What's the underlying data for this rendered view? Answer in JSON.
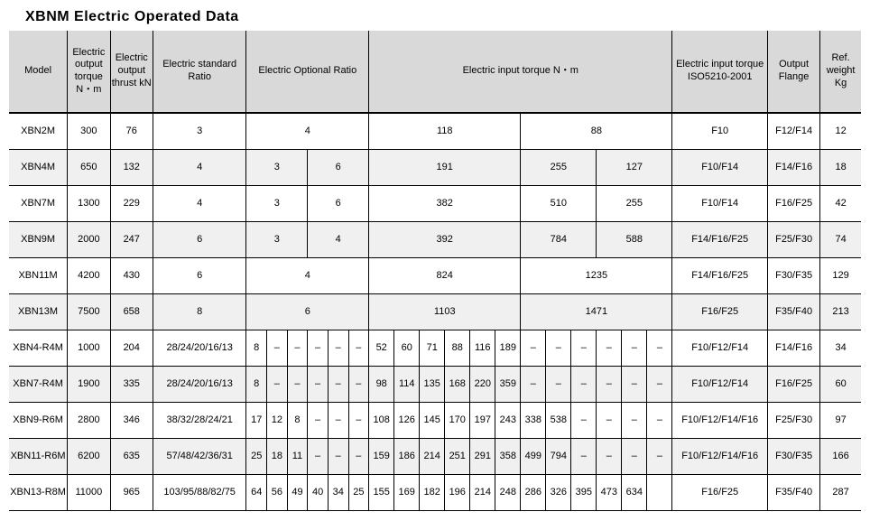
{
  "title": "XBNM Electric Operated Data",
  "headers": {
    "model": "Model",
    "out_torque": "Electric output torque N・m",
    "out_thrust": "Electric output thrust kN",
    "std_ratio": "Electric standard Ratio",
    "opt_ratio": "Electric Optional Ratio",
    "in_torque": "Electric input torque  N・m",
    "iso": "Electric input torque ISO5210-2001",
    "flange": "Output Flange",
    "weight": "Ref. weight Kg"
  },
  "rows": [
    {
      "model": "XBN2M",
      "out_t": "300",
      "out_th": "76",
      "std": "3",
      "opt": [
        {
          "v": "4",
          "span": 6
        }
      ],
      "in": [
        {
          "v": "118",
          "span": 6
        },
        {
          "v": "88",
          "span": 6
        }
      ],
      "iso": "F10",
      "flange": "F12/F14",
      "wt": "12"
    },
    {
      "model": "XBN4M",
      "out_t": "650",
      "out_th": "132",
      "std": "4",
      "opt": [
        {
          "v": "3",
          "span": 3
        },
        {
          "v": "6",
          "span": 3
        }
      ],
      "in": [
        {
          "v": "191",
          "span": 6
        },
        {
          "v": "255",
          "span": 3
        },
        {
          "v": "127",
          "span": 3
        }
      ],
      "iso": "F10/F14",
      "flange": "F14/F16",
      "wt": "18"
    },
    {
      "model": "XBN7M",
      "out_t": "1300",
      "out_th": "229",
      "std": "4",
      "opt": [
        {
          "v": "3",
          "span": 3
        },
        {
          "v": "6",
          "span": 3
        }
      ],
      "in": [
        {
          "v": "382",
          "span": 6
        },
        {
          "v": "510",
          "span": 3
        },
        {
          "v": "255",
          "span": 3
        }
      ],
      "iso": "F10/F14",
      "flange": "F16/F25",
      "wt": "42"
    },
    {
      "model": "XBN9M",
      "out_t": "2000",
      "out_th": "247",
      "std": "6",
      "opt": [
        {
          "v": "3",
          "span": 3
        },
        {
          "v": "4",
          "span": 3
        }
      ],
      "in": [
        {
          "v": "392",
          "span": 6
        },
        {
          "v": "784",
          "span": 3
        },
        {
          "v": "588",
          "span": 3
        }
      ],
      "iso": "F14/F16/F25",
      "flange": "F25/F30",
      "wt": "74"
    },
    {
      "model": "XBN11M",
      "out_t": "4200",
      "out_th": "430",
      "std": "6",
      "opt": [
        {
          "v": "4",
          "span": 6
        }
      ],
      "in": [
        {
          "v": "824",
          "span": 6
        },
        {
          "v": "1235",
          "span": 6
        }
      ],
      "iso": "F14/F16/F25",
      "flange": "F30/F35",
      "wt": "129"
    },
    {
      "model": "XBN13M",
      "out_t": "7500",
      "out_th": "658",
      "std": "8",
      "opt": [
        {
          "v": "6",
          "span": 6
        }
      ],
      "in": [
        {
          "v": "1103",
          "span": 6
        },
        {
          "v": "1471",
          "span": 6
        }
      ],
      "iso": "F16/F25",
      "flange": "F35/F40",
      "wt": "213"
    },
    {
      "model": "XBN4-R4M",
      "out_t": "1000",
      "out_th": "204",
      "std": "28/24/20/16/13",
      "opt": [
        {
          "v": "8",
          "span": 1
        },
        {
          "v": "–",
          "span": 1
        },
        {
          "v": "–",
          "span": 1
        },
        {
          "v": "–",
          "span": 1
        },
        {
          "v": "–",
          "span": 1
        },
        {
          "v": "–",
          "span": 1
        }
      ],
      "in": [
        {
          "v": "52",
          "span": 1
        },
        {
          "v": "60",
          "span": 1
        },
        {
          "v": "71",
          "span": 1
        },
        {
          "v": "88",
          "span": 1
        },
        {
          "v": "116",
          "span": 1
        },
        {
          "v": "189",
          "span": 1
        },
        {
          "v": "–",
          "span": 1
        },
        {
          "v": "–",
          "span": 1
        },
        {
          "v": "–",
          "span": 1
        },
        {
          "v": "–",
          "span": 1
        },
        {
          "v": "–",
          "span": 1
        },
        {
          "v": "–",
          "span": 1
        }
      ],
      "iso": "F10/F12/F14",
      "flange": "F14/F16",
      "wt": "34"
    },
    {
      "model": "XBN7-R4M",
      "out_t": "1900",
      "out_th": "335",
      "std": "28/24/20/16/13",
      "opt": [
        {
          "v": "8",
          "span": 1
        },
        {
          "v": "–",
          "span": 1
        },
        {
          "v": "–",
          "span": 1
        },
        {
          "v": "–",
          "span": 1
        },
        {
          "v": "–",
          "span": 1
        },
        {
          "v": "–",
          "span": 1
        }
      ],
      "in": [
        {
          "v": "98",
          "span": 1
        },
        {
          "v": "114",
          "span": 1
        },
        {
          "v": "135",
          "span": 1
        },
        {
          "v": "168",
          "span": 1
        },
        {
          "v": "220",
          "span": 1
        },
        {
          "v": "359",
          "span": 1
        },
        {
          "v": "–",
          "span": 1
        },
        {
          "v": "–",
          "span": 1
        },
        {
          "v": "–",
          "span": 1
        },
        {
          "v": "–",
          "span": 1
        },
        {
          "v": "–",
          "span": 1
        },
        {
          "v": "–",
          "span": 1
        }
      ],
      "iso": "F10/F12/F14",
      "flange": "F16/F25",
      "wt": "60"
    },
    {
      "model": "XBN9-R6M",
      "out_t": "2800",
      "out_th": "346",
      "std": "38/32/28/24/21",
      "opt": [
        {
          "v": "17",
          "span": 1
        },
        {
          "v": "12",
          "span": 1
        },
        {
          "v": "8",
          "span": 1
        },
        {
          "v": "–",
          "span": 1
        },
        {
          "v": "–",
          "span": 1
        },
        {
          "v": "–",
          "span": 1
        }
      ],
      "in": [
        {
          "v": "108",
          "span": 1
        },
        {
          "v": "126",
          "span": 1
        },
        {
          "v": "145",
          "span": 1
        },
        {
          "v": "170",
          "span": 1
        },
        {
          "v": "197",
          "span": 1
        },
        {
          "v": "243",
          "span": 1
        },
        {
          "v": "338",
          "span": 1
        },
        {
          "v": "538",
          "span": 1
        },
        {
          "v": "–",
          "span": 1
        },
        {
          "v": "–",
          "span": 1
        },
        {
          "v": "–",
          "span": 1
        },
        {
          "v": "–",
          "span": 1
        }
      ],
      "iso": "F10/F12/F14/F16",
      "flange": "F25/F30",
      "wt": "97"
    },
    {
      "model": "XBN11-R6M",
      "out_t": "6200",
      "out_th": "635",
      "std": "57/48/42/36/31",
      "opt": [
        {
          "v": "25",
          "span": 1
        },
        {
          "v": "18",
          "span": 1
        },
        {
          "v": "11",
          "span": 1
        },
        {
          "v": "–",
          "span": 1
        },
        {
          "v": "–",
          "span": 1
        },
        {
          "v": "–",
          "span": 1
        }
      ],
      "in": [
        {
          "v": "159",
          "span": 1
        },
        {
          "v": "186",
          "span": 1
        },
        {
          "v": "214",
          "span": 1
        },
        {
          "v": "251",
          "span": 1
        },
        {
          "v": "291",
          "span": 1
        },
        {
          "v": "358",
          "span": 1
        },
        {
          "v": "499",
          "span": 1
        },
        {
          "v": "794",
          "span": 1
        },
        {
          "v": "–",
          "span": 1
        },
        {
          "v": "–",
          "span": 1
        },
        {
          "v": "–",
          "span": 1
        },
        {
          "v": "–",
          "span": 1
        }
      ],
      "iso": "F10/F12/F14/F16",
      "flange": "F30/F35",
      "wt": "166"
    },
    {
      "model": "XBN13-R8M",
      "out_t": "11000",
      "out_th": "965",
      "std": "103/95/88/82/75",
      "opt": [
        {
          "v": "64",
          "span": 1
        },
        {
          "v": "56",
          "span": 1
        },
        {
          "v": "49",
          "span": 1
        },
        {
          "v": "40",
          "span": 1
        },
        {
          "v": "34",
          "span": 1
        },
        {
          "v": "25",
          "span": 1
        }
      ],
      "in": [
        {
          "v": "155",
          "span": 1
        },
        {
          "v": "169",
          "span": 1
        },
        {
          "v": "182",
          "span": 1
        },
        {
          "v": "196",
          "span": 1
        },
        {
          "v": "214",
          "span": 1
        },
        {
          "v": "248",
          "span": 1
        },
        {
          "v": "286",
          "span": 1
        },
        {
          "v": "326",
          "span": 1
        },
        {
          "v": "395",
          "span": 1
        },
        {
          "v": "473",
          "span": 1
        },
        {
          "v": "634",
          "span": 1
        },
        {
          "v": "",
          "span": 1
        }
      ],
      "iso": "F16/F25",
      "flange": "F35/F40",
      "wt": "287"
    }
  ],
  "style": {
    "header_bg": "#d9d9d9",
    "row_alt_bg": "#f0f0f0",
    "border_color": "#000000",
    "font_family": "Arial",
    "title_fontsize": 16,
    "cell_fontsize": 11
  }
}
